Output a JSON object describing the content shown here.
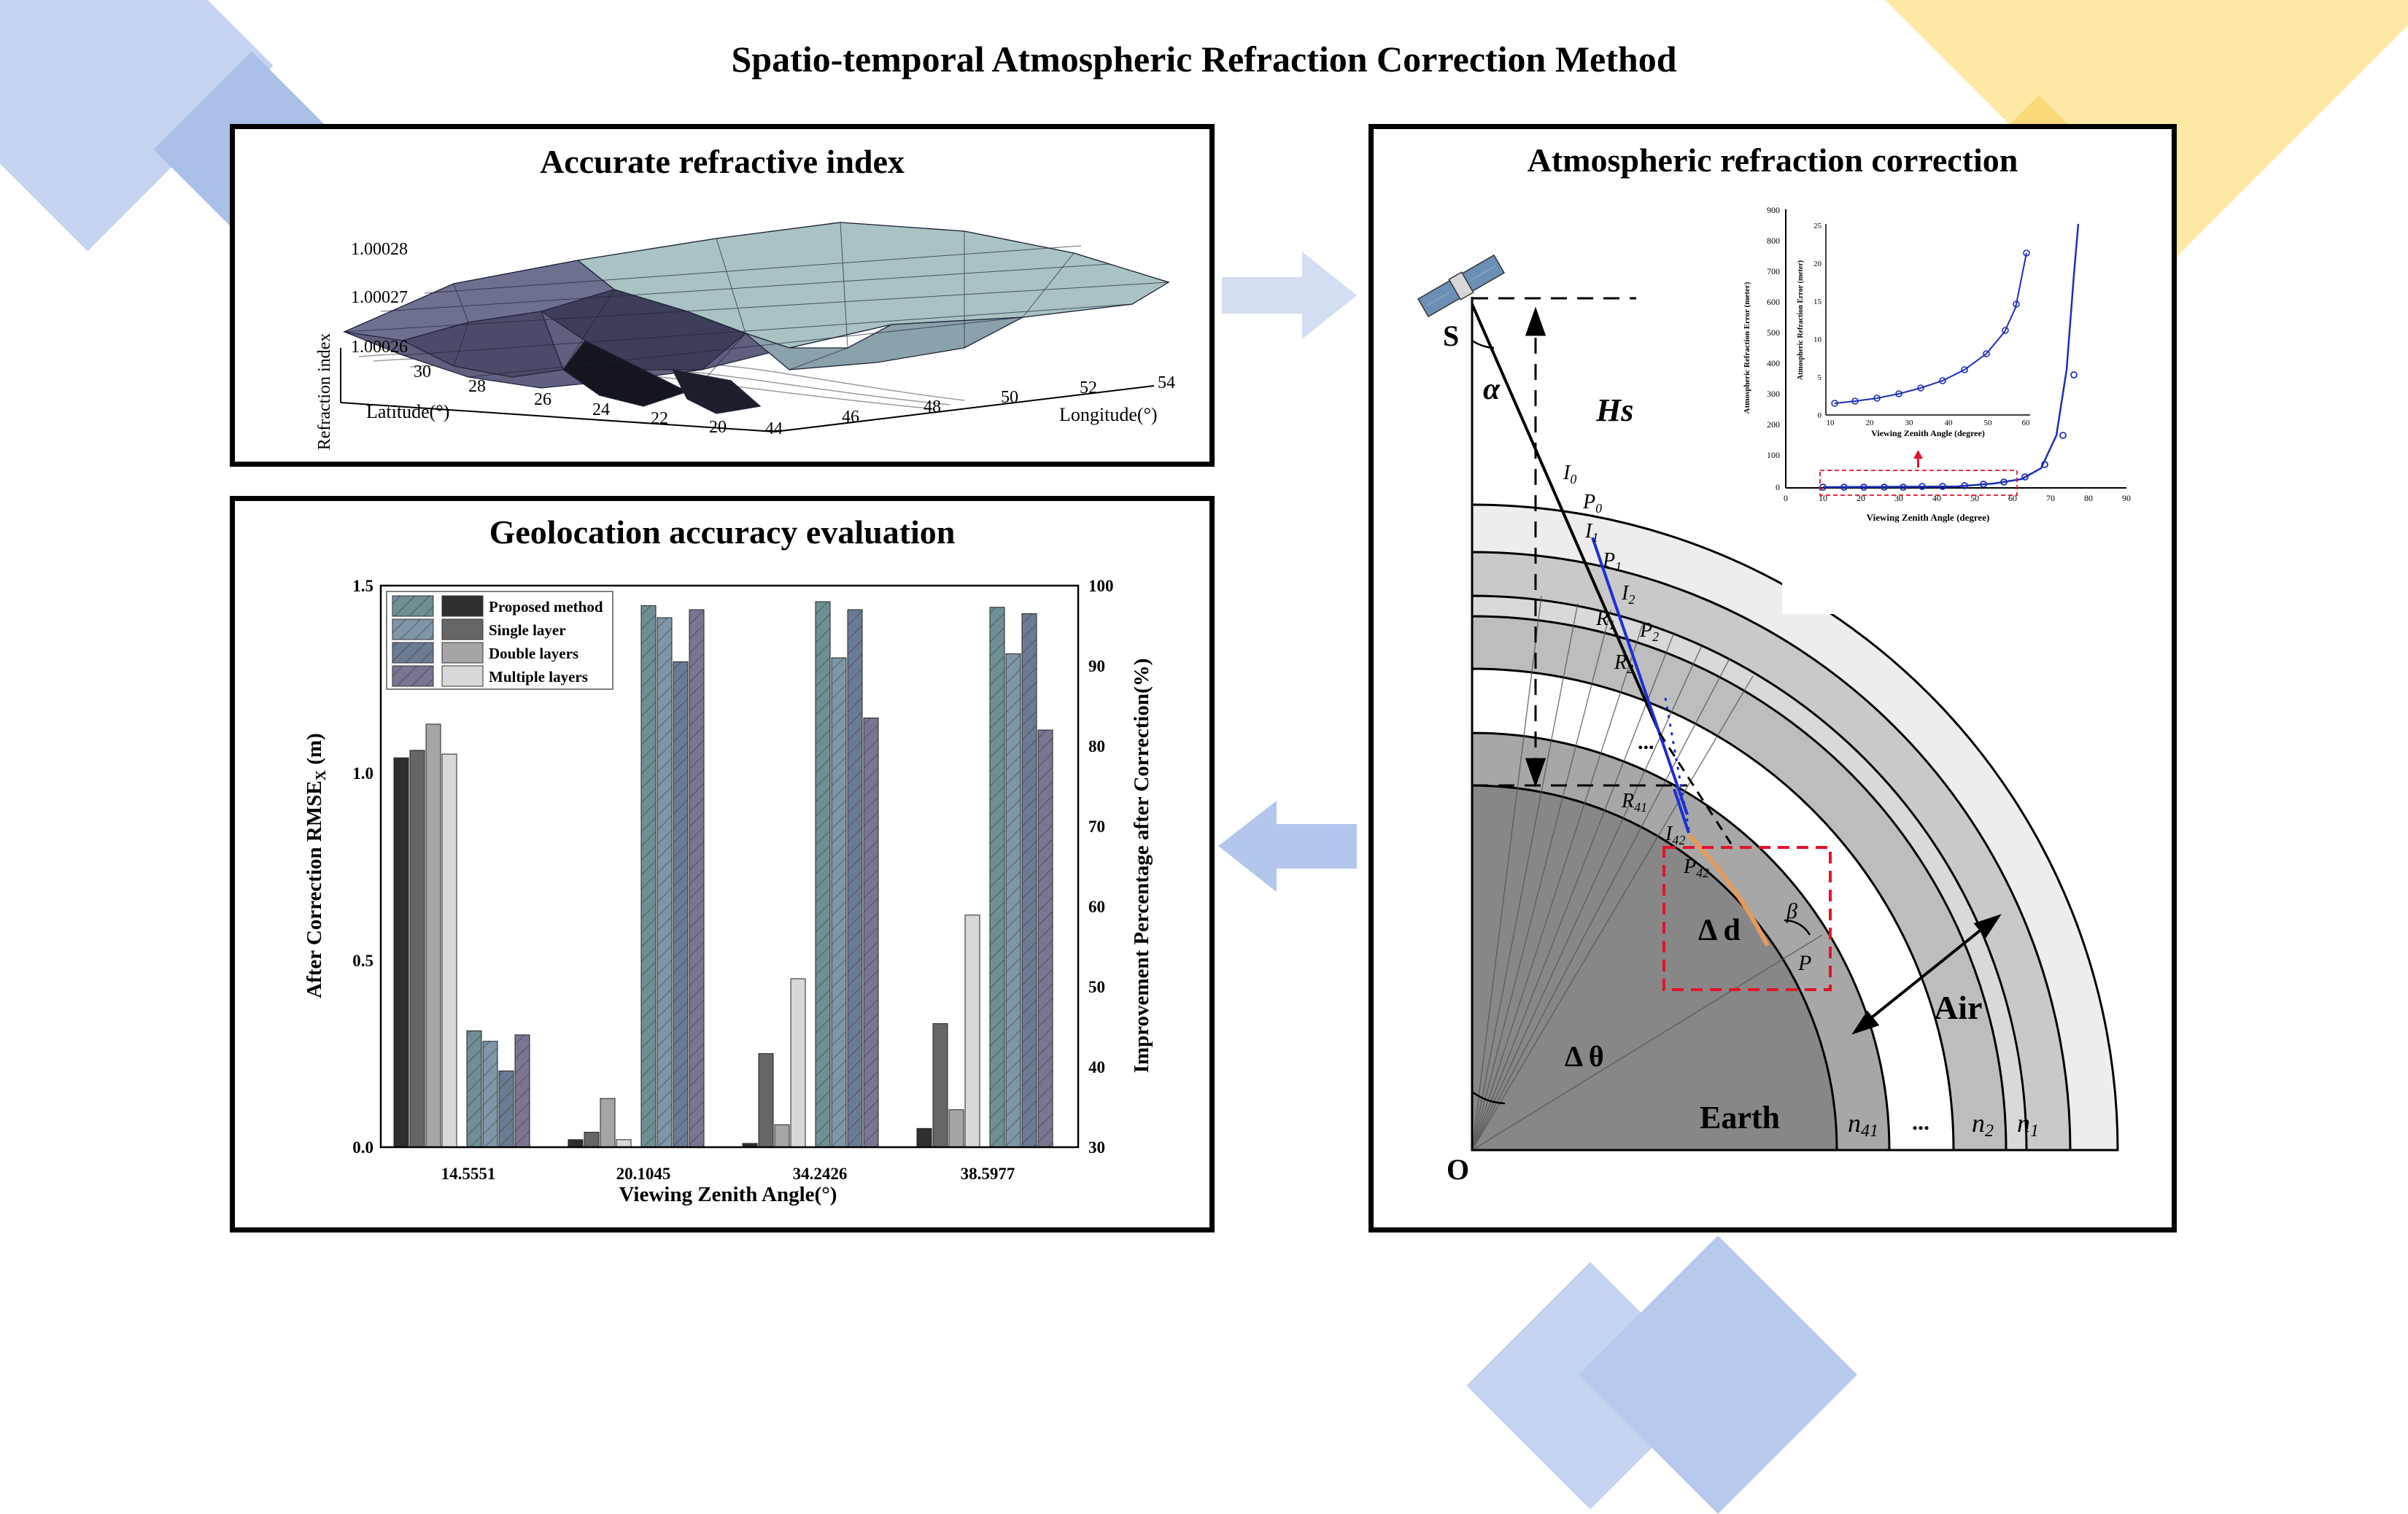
{
  "title": "Spatio-temporal Atmospheric Refraction Correction Method",
  "colors": {
    "deco_blue": "#b9cbed",
    "deco_blue_dark": "#9fb5e4",
    "deco_yellow": "#fde79a",
    "deco_yellow_dark": "#fbd76a",
    "arrow_right": "#d3def2",
    "arrow_left": "#b3c7ec",
    "bar_hatch_teal": "#6f8f94",
    "bar_hatch_purple": "#7b7592"
  },
  "panel_refractive": {
    "title": "Accurate refractive index",
    "z_label": "Refraction index",
    "z_ticks": [
      "1.00028",
      "1.00027",
      "1.00026"
    ],
    "y_label": "Latitude(°)",
    "y_ticks": [
      "30",
      "28",
      "26",
      "24",
      "22",
      "20"
    ],
    "x_label": "Longitude(°)",
    "x_ticks": [
      "44",
      "46",
      "48",
      "50",
      "52",
      "54"
    ]
  },
  "panel_correction": {
    "title": "Atmospheric refraction correction",
    "labels": {
      "S": "S",
      "alpha": "α",
      "Hs": "Hs",
      "O": "O",
      "Earth": "Earth",
      "Air": "Air",
      "delta_d": "Δ d",
      "delta_theta": "Δ θ",
      "beta": "β",
      "P": "P",
      "I0": "I",
      "I0_sub": "0",
      "P0": "P",
      "P0_sub": "0",
      "I1": "I",
      "I1_sub": "1",
      "P1": "P",
      "P1_sub": "1",
      "I2": "I",
      "I2_sub": "2",
      "R1": "R",
      "R1_sub": "1",
      "P2": "P",
      "P2_sub": "2",
      "R2": "R",
      "R2_sub": "2",
      "dots": "...",
      "R41": "R",
      "R41_sub": "41",
      "I42": "I",
      "I42_sub": "42",
      "P42": "P",
      "P42_sub": "42",
      "n41": "n",
      "n41_sub": "41",
      "n_dots": "...",
      "n2": "n",
      "n2_sub": "2",
      "n1": "n",
      "n1_sub": "1"
    },
    "inset": {
      "ylabel_outer": "Atmospheric Refraction Error (meter)",
      "ylabel_inner": "Atmospheric Refraction Error (meter)",
      "xlabel_outer": "Viewing Zenith Angle (degree)",
      "xlabel_inner": "Viewing Zenith Angle (degree)",
      "outer_y_ticks": [
        "900",
        "800",
        "700",
        "600",
        "500",
        "400",
        "300",
        "200",
        "100",
        "0"
      ],
      "outer_x_ticks": [
        "0",
        "10",
        "20",
        "30",
        "40",
        "50",
        "60",
        "70",
        "80",
        "90"
      ],
      "inner_y_ticks": [
        "25",
        "20",
        "15",
        "10",
        "5",
        "0"
      ],
      "inner_x_ticks": [
        "10",
        "20",
        "30",
        "40",
        "50",
        "60"
      ]
    }
  },
  "panel_geolocation": {
    "title": "Geolocation accuracy evaluation",
    "chart_data": {
      "type": "bar",
      "title": "Geolocation accuracy evaluation",
      "xlabel": "Viewing Zenith Angle(°)",
      "ylabel": "After Correction RMSE",
      "ylabel_sub": "X",
      "ylabel_unit": " (m)",
      "y2label": "Improvement Percentage after Correction(%)",
      "categories": [
        "14.5551",
        "20.1045",
        "34.2426",
        "38.5977"
      ],
      "ylim": [
        0,
        1.5
      ],
      "y2lim": [
        30,
        100
      ],
      "y_ticks": [
        "0.0",
        "0.5",
        "1.0",
        "1.5"
      ],
      "y2_ticks": [
        "30",
        "40",
        "50",
        "60",
        "70",
        "80",
        "90",
        "100"
      ],
      "series": [
        {
          "name": "Proposed method",
          "axis": "left",
          "color": "#2f2f2f",
          "values": [
            1.04,
            0.02,
            0.01,
            0.05
          ]
        },
        {
          "name": "Single layer",
          "axis": "left",
          "color": "#666666",
          "values": [
            1.06,
            0.04,
            0.25,
            0.33
          ]
        },
        {
          "name": "Double layers",
          "axis": "left",
          "color": "#a5a5a5",
          "values": [
            1.13,
            0.13,
            0.06,
            0.1
          ]
        },
        {
          "name": "Multiple layers",
          "axis": "left",
          "color": "#d8d8d8",
          "values": [
            1.05,
            0.02,
            0.45,
            0.62
          ]
        },
        {
          "name": "Proposed improvement",
          "axis": "right",
          "color": "#6f8f94",
          "values": [
            44.5,
            97.5,
            98.0,
            97.3
          ]
        },
        {
          "name": "Single layer improvement",
          "axis": "right",
          "color": "#7f96a8",
          "values": [
            43.2,
            96.0,
            91.0,
            91.5
          ]
        },
        {
          "name": "Double layers improvement",
          "axis": "right",
          "color": "#6c7b94",
          "values": [
            39.5,
            90.5,
            97.0,
            96.5
          ]
        },
        {
          "name": "Multiple layers improvement",
          "axis": "right",
          "color": "#7b7592",
          "values": [
            44.0,
            97.0,
            83.5,
            82.0
          ]
        }
      ],
      "legend": [
        "Proposed method",
        "Single layer",
        "Double layers",
        "Multiple layers"
      ],
      "legend_position": "top-left"
    }
  }
}
